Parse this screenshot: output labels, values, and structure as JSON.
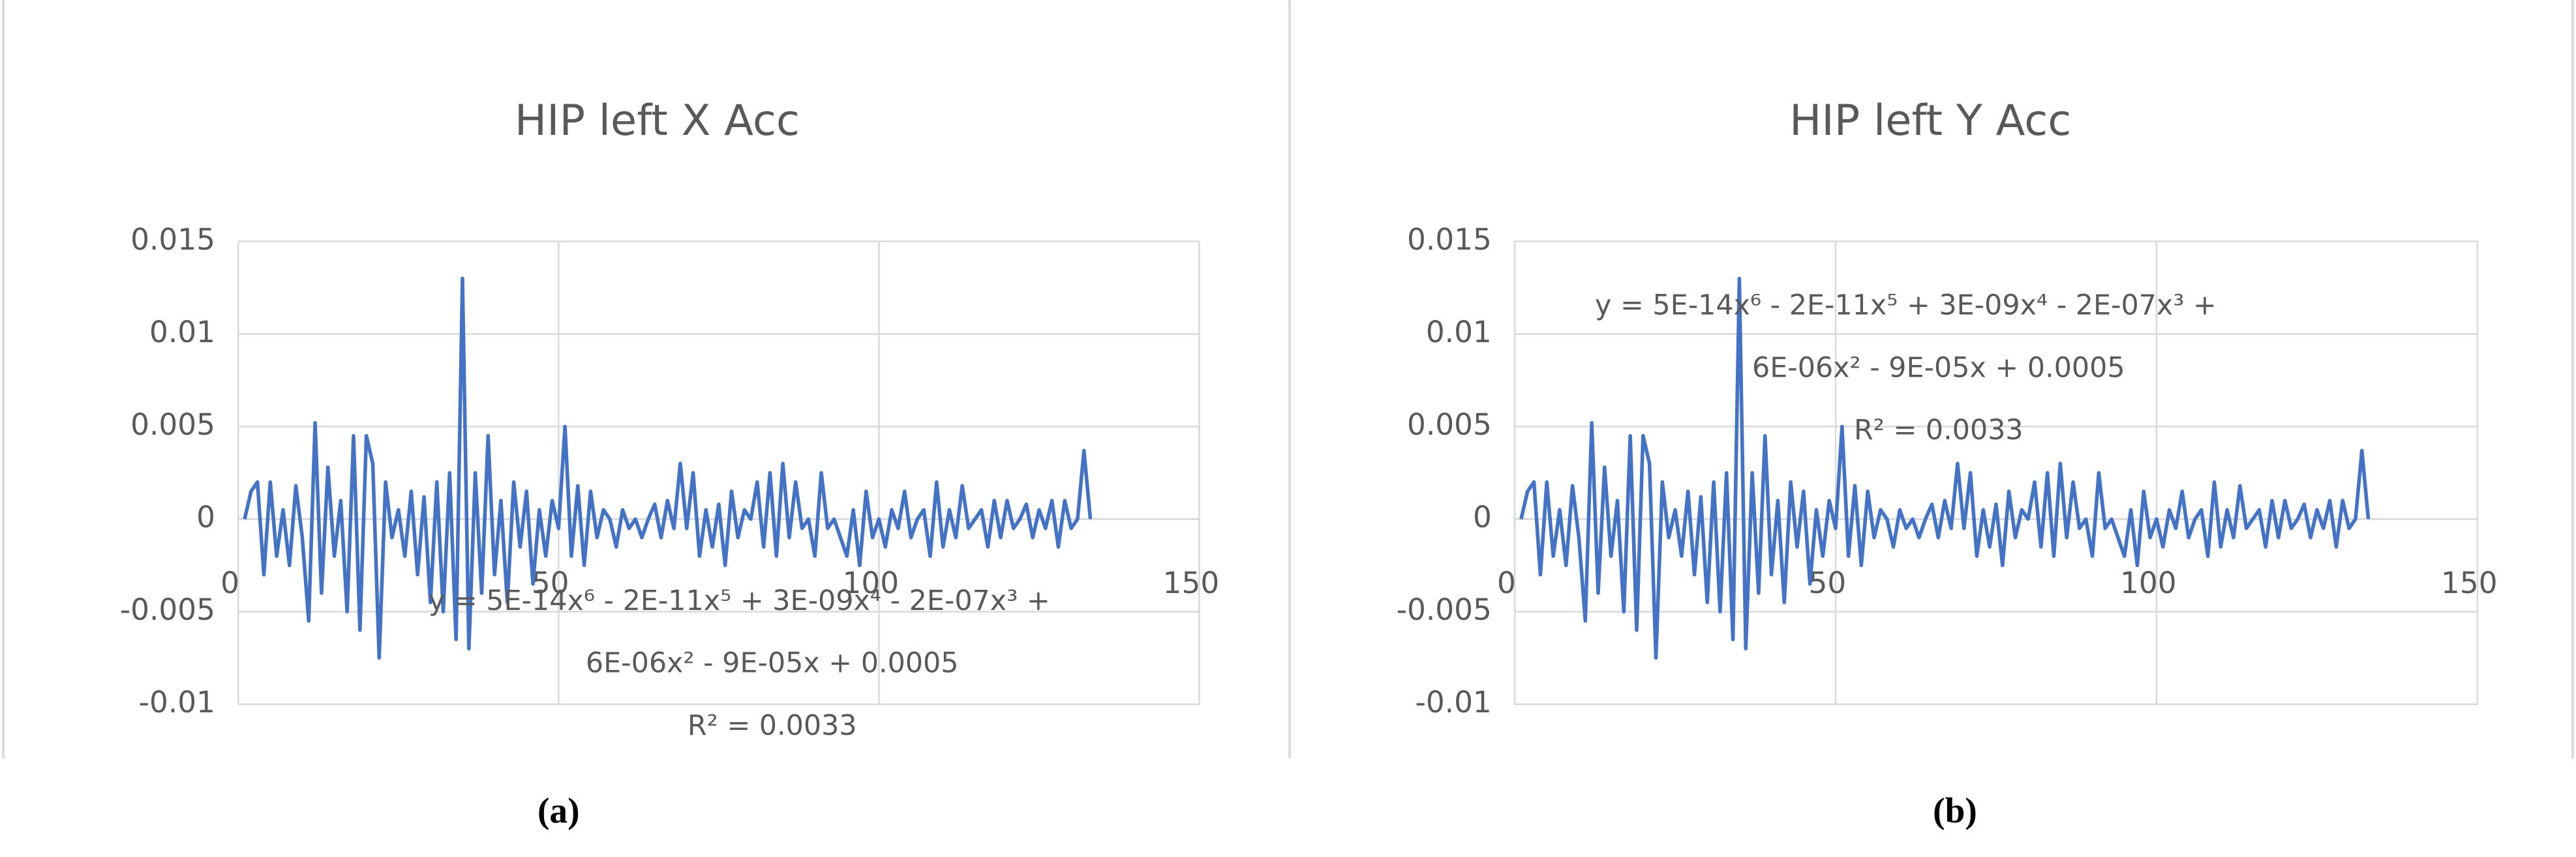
{
  "chart_data": [
    {
      "type": "line",
      "title": "HIP left X Acc",
      "x": [
        1,
        2,
        3,
        4,
        5,
        6,
        7,
        8,
        9,
        10,
        11,
        12,
        13,
        14,
        15,
        16,
        17,
        18,
        19,
        20,
        21,
        22,
        23,
        24,
        25,
        26,
        27,
        28,
        29,
        30,
        31,
        32,
        33,
        34,
        35,
        36,
        37,
        38,
        39,
        40,
        41,
        42,
        43,
        44,
        45,
        46,
        47,
        48,
        49,
        50,
        51,
        52,
        53,
        54,
        55,
        56,
        57,
        58,
        59,
        60,
        61,
        62,
        63,
        64,
        65,
        66,
        67,
        68,
        69,
        70,
        71,
        72,
        73,
        74,
        75,
        76,
        77,
        78,
        79,
        80,
        81,
        82,
        83,
        84,
        85,
        86,
        87,
        88,
        89,
        90,
        91,
        92,
        93,
        94,
        95,
        96,
        97,
        98,
        99,
        100,
        101,
        102,
        103,
        104,
        105,
        106,
        107,
        108,
        109,
        110,
        111,
        112,
        113,
        114,
        115,
        116,
        117,
        118,
        119,
        120,
        121,
        122,
        123,
        124,
        125,
        126,
        127,
        128,
        129,
        130,
        131,
        132,
        133
      ],
      "series": [
        {
          "color": "#4472c4",
          "values": [
            0,
            0.0015,
            0.002,
            -0.003,
            0.002,
            -0.002,
            0.0005,
            -0.0025,
            0.0018,
            -0.001,
            -0.0055,
            0.0052,
            -0.004,
            0.0028,
            -0.002,
            0.001,
            -0.005,
            0.0045,
            -0.006,
            0.0045,
            0.003,
            -0.0075,
            0.002,
            -0.001,
            0.0005,
            -0.002,
            0.0015,
            -0.003,
            0.0012,
            -0.0045,
            0.002,
            -0.005,
            0.0025,
            -0.0065,
            0.013,
            -0.007,
            0.0025,
            -0.004,
            0.0045,
            -0.003,
            0.001,
            -0.0045,
            0.002,
            -0.0015,
            0.0015,
            -0.0035,
            0.0005,
            -0.002,
            0.001,
            -0.0005,
            0.005,
            -0.002,
            0.0018,
            -0.0025,
            0.0015,
            -0.001,
            0.0005,
            0,
            -0.0015,
            0.0005,
            -0.0005,
            0,
            -0.001,
            0,
            0.0008,
            -0.001,
            0.001,
            -0.0005,
            0.003,
            -0.0005,
            0.0025,
            -0.002,
            0.0005,
            -0.0015,
            0.0008,
            -0.0025,
            0.0015,
            -0.001,
            0.0005,
            0,
            0.002,
            -0.0015,
            0.0025,
            -0.002,
            0.003,
            -0.001,
            0.002,
            -0.0005,
            0,
            -0.002,
            0.0025,
            -0.0005,
            0,
            -0.001,
            -0.002,
            0.0005,
            -0.0025,
            0.0015,
            -0.001,
            0,
            -0.0015,
            0.0005,
            -0.0005,
            0.0015,
            -0.001,
            0,
            0.0005,
            -0.002,
            0.002,
            -0.0015,
            0.0005,
            -0.001,
            0.0018,
            -0.0005,
            0,
            0.0005,
            -0.0015,
            0.001,
            -0.001,
            0.001,
            -0.0005,
            0,
            0.0008,
            -0.001,
            0.0005,
            -0.0005,
            0.001,
            -0.0015,
            0.001,
            -0.0005,
            0,
            0.0037,
            0
          ]
        }
      ],
      "xlim": [
        0,
        150
      ],
      "xticks": [
        0,
        50,
        100,
        150
      ],
      "ylim": [
        -0.01,
        0.015
      ],
      "yticks": [
        0.015,
        0.01,
        0.005,
        0,
        -0.005,
        -0.01
      ],
      "grid": true,
      "trendline_equation": [
        "y = 5E-14x⁶ - 2E-11x⁵ + 3E-09x⁴ - 2E-07x³ +",
        "6E-06x² - 9E-05x + 0.0005",
        "R² = 0.0033"
      ],
      "caption": "(a)"
    },
    {
      "type": "line",
      "title": "HIP left Y Acc",
      "x": [
        1,
        2,
        3,
        4,
        5,
        6,
        7,
        8,
        9,
        10,
        11,
        12,
        13,
        14,
        15,
        16,
        17,
        18,
        19,
        20,
        21,
        22,
        23,
        24,
        25,
        26,
        27,
        28,
        29,
        30,
        31,
        32,
        33,
        34,
        35,
        36,
        37,
        38,
        39,
        40,
        41,
        42,
        43,
        44,
        45,
        46,
        47,
        48,
        49,
        50,
        51,
        52,
        53,
        54,
        55,
        56,
        57,
        58,
        59,
        60,
        61,
        62,
        63,
        64,
        65,
        66,
        67,
        68,
        69,
        70,
        71,
        72,
        73,
        74,
        75,
        76,
        77,
        78,
        79,
        80,
        81,
        82,
        83,
        84,
        85,
        86,
        87,
        88,
        89,
        90,
        91,
        92,
        93,
        94,
        95,
        96,
        97,
        98,
        99,
        100,
        101,
        102,
        103,
        104,
        105,
        106,
        107,
        108,
        109,
        110,
        111,
        112,
        113,
        114,
        115,
        116,
        117,
        118,
        119,
        120,
        121,
        122,
        123,
        124,
        125,
        126,
        127,
        128,
        129,
        130,
        131,
        132,
        133
      ],
      "series": [
        {
          "color": "#4472c4",
          "values": [
            0,
            0.0015,
            0.002,
            -0.003,
            0.002,
            -0.002,
            0.0005,
            -0.0025,
            0.0018,
            -0.001,
            -0.0055,
            0.0052,
            -0.004,
            0.0028,
            -0.002,
            0.001,
            -0.005,
            0.0045,
            -0.006,
            0.0045,
            0.003,
            -0.0075,
            0.002,
            -0.001,
            0.0005,
            -0.002,
            0.0015,
            -0.003,
            0.0012,
            -0.0045,
            0.002,
            -0.005,
            0.0025,
            -0.0065,
            0.013,
            -0.007,
            0.0025,
            -0.004,
            0.0045,
            -0.003,
            0.001,
            -0.0045,
            0.002,
            -0.0015,
            0.0015,
            -0.0035,
            0.0005,
            -0.002,
            0.001,
            -0.0005,
            0.005,
            -0.002,
            0.0018,
            -0.0025,
            0.0015,
            -0.001,
            0.0005,
            0,
            -0.0015,
            0.0005,
            -0.0005,
            0,
            -0.001,
            0,
            0.0008,
            -0.001,
            0.001,
            -0.0005,
            0.003,
            -0.0005,
            0.0025,
            -0.002,
            0.0005,
            -0.0015,
            0.0008,
            -0.0025,
            0.0015,
            -0.001,
            0.0005,
            0,
            0.002,
            -0.0015,
            0.0025,
            -0.002,
            0.003,
            -0.001,
            0.002,
            -0.0005,
            0,
            -0.002,
            0.0025,
            -0.0005,
            0,
            -0.001,
            -0.002,
            0.0005,
            -0.0025,
            0.0015,
            -0.001,
            0,
            -0.0015,
            0.0005,
            -0.0005,
            0.0015,
            -0.001,
            0,
            0.0005,
            -0.002,
            0.002,
            -0.0015,
            0.0005,
            -0.001,
            0.0018,
            -0.0005,
            0,
            0.0005,
            -0.0015,
            0.001,
            -0.001,
            0.001,
            -0.0005,
            0,
            0.0008,
            -0.001,
            0.0005,
            -0.0005,
            0.001,
            -0.0015,
            0.001,
            -0.0005,
            0,
            0.0037,
            0
          ]
        }
      ],
      "xlim": [
        0,
        150
      ],
      "xticks": [
        0,
        50,
        100,
        150
      ],
      "ylim": [
        -0.01,
        0.015
      ],
      "yticks": [
        0.015,
        0.01,
        0.005,
        0,
        -0.005,
        -0.01
      ],
      "grid": true,
      "trendline_equation": [
        "y = 5E-14x⁶ - 2E-11x⁵ + 3E-09x⁴ - 2E-07x³ +",
        "6E-06x² - 9E-05x + 0.0005",
        "R² = 0.0033"
      ],
      "caption": "(b)"
    }
  ]
}
